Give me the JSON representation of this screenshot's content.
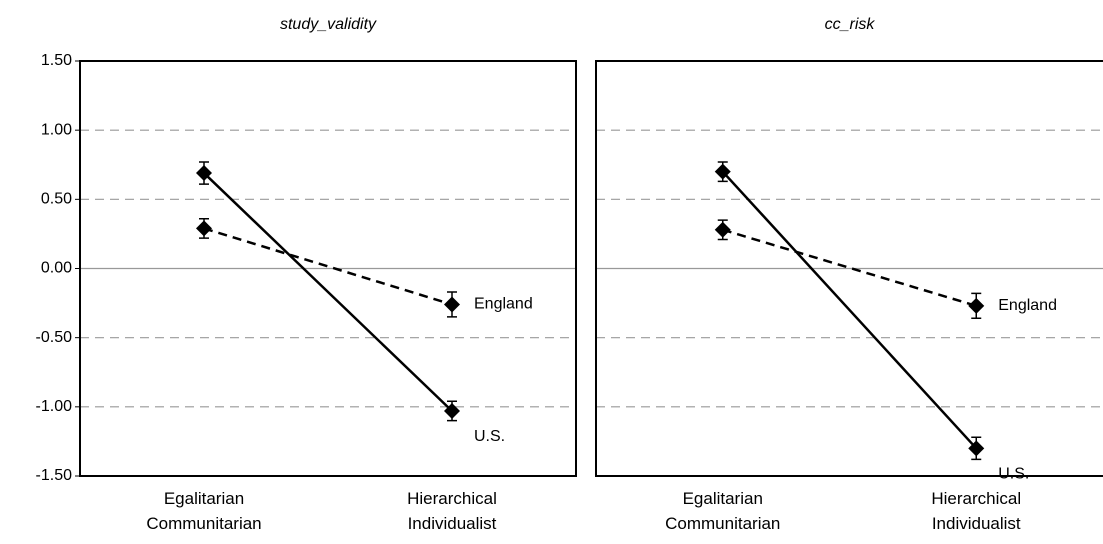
{
  "chart_data": [
    {
      "type": "line",
      "title": "study_validity",
      "categories": [
        "Egalitarian\nCommunitarian",
        "Hierarchical\nIndividualist"
      ],
      "series": [
        {
          "name": "U.S.",
          "color": "#000000",
          "dash": false,
          "values": [
            0.69,
            -1.03
          ],
          "errors": [
            0.08,
            0.07
          ]
        },
        {
          "name": "England",
          "color": "#000000",
          "dash": true,
          "values": [
            0.29,
            -0.26
          ],
          "errors": [
            0.07,
            0.09
          ]
        }
      ],
      "ylim": [
        -1.5,
        1.5
      ],
      "yticks": [
        {
          "value": -1.5,
          "label": "-1.50"
        },
        {
          "value": -1,
          "label": "-1.00"
        },
        {
          "value": -0.5,
          "label": "-0.50"
        },
        {
          "value": 0,
          "label": "0.00"
        },
        {
          "value": 0.5,
          "label": "0.50"
        },
        {
          "value": 1,
          "label": "1.00"
        },
        {
          "value": 1.5,
          "label": "1.50"
        }
      ],
      "grid": true
    },
    {
      "type": "line",
      "title": "cc_risk",
      "categories": [
        "Egalitarian\nCommunitarian",
        "Hierarchical\nIndividualist"
      ],
      "series": [
        {
          "name": "U.S.",
          "color": "#000000",
          "dash": false,
          "values": [
            0.7,
            -1.3
          ],
          "errors": [
            0.07,
            0.08
          ]
        },
        {
          "name": "England",
          "color": "#000000",
          "dash": true,
          "values": [
            0.28,
            -0.27
          ],
          "errors": [
            0.07,
            0.09
          ]
        }
      ],
      "ylim": [
        -1.5,
        1.5
      ],
      "yticks": [
        -1.5,
        -1,
        -0.5,
        0,
        0.5,
        1,
        1.5
      ],
      "grid": true
    }
  ]
}
